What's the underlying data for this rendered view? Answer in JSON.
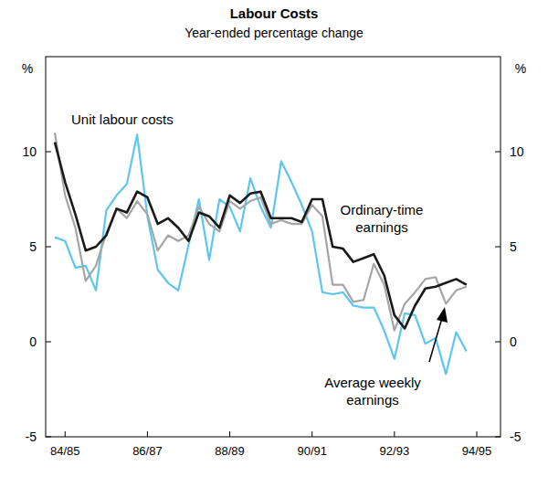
{
  "chart_data": {
    "type": "line",
    "title": "Labour Costs",
    "subtitle": "Year-ended percentage change",
    "y_label": "%",
    "categories": [
      null,
      "84/85",
      null,
      null,
      null,
      null,
      null,
      null,
      null,
      "86/87",
      null,
      null,
      null,
      null,
      null,
      null,
      null,
      "88/89",
      null,
      null,
      null,
      null,
      null,
      null,
      null,
      "90/91",
      null,
      null,
      null,
      null,
      null,
      null,
      null,
      "92/93",
      null,
      null,
      null,
      null,
      null,
      null,
      null,
      "94/95"
    ],
    "series": [
      {
        "name": "Unit labour costs",
        "color": "#5cc6ef",
        "values": [
          5.5,
          5.3,
          3.9,
          4.0,
          2.7,
          6.9,
          7.7,
          8.3,
          10.9,
          6.6,
          3.8,
          3.1,
          2.7,
          5.1,
          7.5,
          4.3,
          7.5,
          7.1,
          5.8,
          8.6,
          7.1,
          6.0,
          9.5,
          8.4,
          7.2,
          5.8,
          2.6,
          2.5,
          2.6,
          1.9,
          1.8,
          1.8,
          0.6,
          -0.9,
          1.5,
          1.4,
          -0.1,
          0.2,
          -1.7,
          0.5,
          -0.5,
          null
        ]
      },
      {
        "name": "Average weekly earnings",
        "color": "#a5a5a5",
        "values": [
          11.0,
          7.7,
          6.0,
          3.2,
          4.0,
          5.7,
          7.0,
          6.5,
          7.4,
          6.7,
          4.8,
          5.6,
          5.3,
          5.6,
          7.1,
          6.2,
          5.8,
          7.4,
          7.0,
          7.4,
          7.6,
          6.2,
          6.4,
          6.2,
          6.2,
          7.2,
          6.6,
          3.0,
          3.0,
          2.1,
          2.2,
          4.1,
          3.0,
          0.6,
          2.0,
          2.6,
          3.3,
          3.4,
          2.0,
          2.7,
          2.9,
          null
        ]
      },
      {
        "name": "Ordinary-time earnings",
        "color": "#1a1a1a",
        "values": [
          10.5,
          8.4,
          6.7,
          4.8,
          5.0,
          5.6,
          7.0,
          6.8,
          7.9,
          7.6,
          6.2,
          6.5,
          6.0,
          5.3,
          6.8,
          6.6,
          6.0,
          7.7,
          7.3,
          7.8,
          7.9,
          6.5,
          6.5,
          6.5,
          6.3,
          7.5,
          7.5,
          5.0,
          4.9,
          4.2,
          4.4,
          4.6,
          3.5,
          1.4,
          0.7,
          1.9,
          2.8,
          2.9,
          3.1,
          3.3,
          3.0,
          null
        ]
      }
    ],
    "ylim": [
      -5,
      15
    ],
    "yticks": [
      -5,
      0,
      5,
      10
    ],
    "grid": false
  }
}
